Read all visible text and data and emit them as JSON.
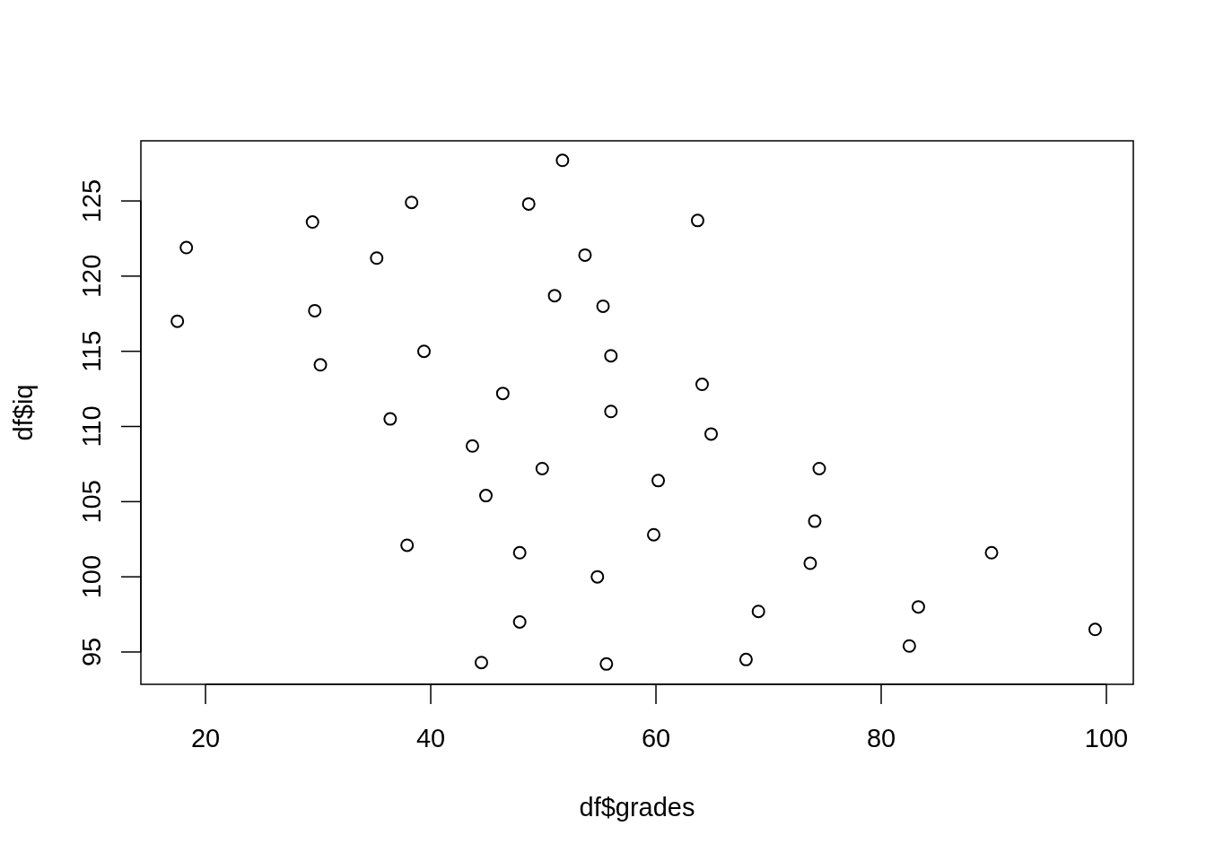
{
  "chart_data": {
    "type": "scatter",
    "xlabel": "df$grades",
    "ylabel": "df$iq",
    "xlim": [
      14.26,
      102.39
    ],
    "ylim": [
      92.85,
      129.0
    ],
    "xticks": [
      20,
      40,
      60,
      80,
      100
    ],
    "yticks": [
      95,
      100,
      105,
      110,
      115,
      120,
      125
    ],
    "marker": "circle",
    "series": [
      {
        "color": "#000000",
        "x": [
          51.7,
          38.3,
          48.7,
          29.5,
          63.7,
          18.3,
          35.2,
          53.7,
          51.0,
          55.3,
          29.7,
          17.5,
          39.4,
          56.0,
          30.2,
          64.1,
          46.4,
          36.4,
          56.0,
          64.9,
          43.7,
          49.9,
          74.5,
          60.2,
          44.9,
          74.1,
          59.8,
          37.9,
          47.9,
          89.8,
          73.7,
          54.8,
          69.1,
          83.3,
          47.9,
          99.0,
          82.5,
          44.5,
          55.6,
          68.0
        ],
        "values": [
          127.7,
          124.9,
          124.8,
          123.6,
          123.7,
          121.9,
          121.2,
          121.4,
          118.7,
          118.0,
          117.7,
          117.0,
          115.0,
          114.7,
          114.1,
          112.8,
          112.2,
          110.5,
          111.0,
          109.5,
          108.7,
          107.2,
          107.2,
          106.4,
          105.4,
          103.7,
          102.8,
          102.1,
          101.6,
          101.6,
          100.9,
          100.0,
          97.7,
          98.0,
          97.0,
          96.5,
          95.4,
          94.3,
          94.2,
          94.5
        ]
      }
    ]
  }
}
